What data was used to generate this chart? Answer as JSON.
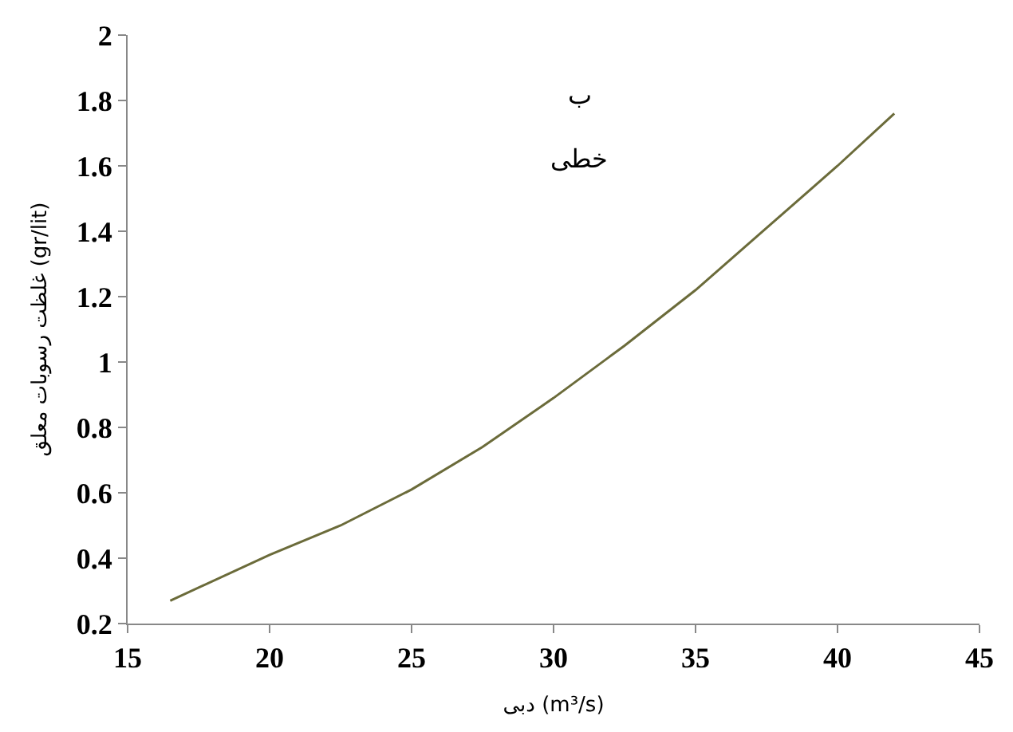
{
  "chart_data": {
    "type": "line",
    "xlabel": "دبی (m³/s)",
    "ylabel": "غلظت رسوبات معلق (gr/lit)",
    "annotations": [
      "ب",
      "خطی"
    ],
    "x": [
      16.5,
      20,
      22.5,
      25,
      27.5,
      30,
      32.5,
      35,
      37.5,
      40,
      42
    ],
    "series": [
      {
        "color": "#6b6b3a",
        "values": [
          0.27,
          0.41,
          0.5,
          0.61,
          0.74,
          0.89,
          1.05,
          1.22,
          1.41,
          1.6,
          1.76
        ]
      }
    ],
    "xlim": [
      15,
      45
    ],
    "xticks": [
      15,
      20,
      25,
      30,
      35,
      40,
      45
    ],
    "ylim": [
      0.2,
      2
    ],
    "yticks": [
      0.2,
      0.4,
      0.6,
      0.8,
      1,
      1.2,
      1.4,
      1.6,
      1.8,
      2
    ],
    "legend": false,
    "marker": "none",
    "line_style": "solid"
  }
}
